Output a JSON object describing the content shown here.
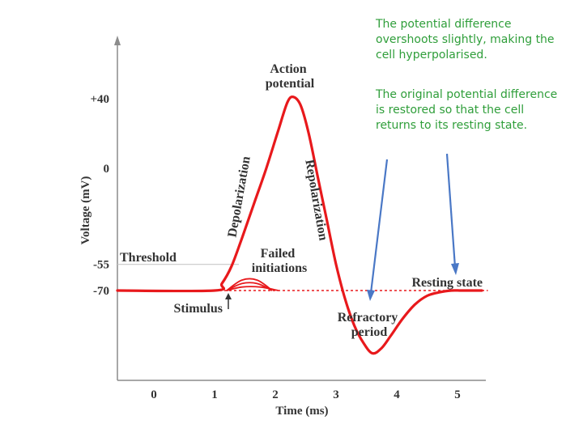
{
  "notes": {
    "overshoot": "The potential difference overshoots slightly, making the cell hyperpolarised.",
    "restored": "The original potential difference is restored so that the cell returns to its resting state."
  },
  "colors": {
    "trace": "#e8191c",
    "note_text": "#2f9e3a",
    "arrows": "#4a78c6",
    "axes": "#8c8c8c",
    "labels": "#333333"
  },
  "chart_data": {
    "type": "line",
    "title": "",
    "xlabel": "Time (ms)",
    "ylabel": "Voltage (mV)",
    "x_ticks": [
      "0",
      "1",
      "2",
      "3",
      "4",
      "5"
    ],
    "y_ticks": [
      {
        "value": 40,
        "label": "+40"
      },
      {
        "value": 0,
        "label": "0"
      },
      {
        "value": -55,
        "label": "-55"
      },
      {
        "value": -70,
        "label": "-70"
      }
    ],
    "xlim": [
      -0.6,
      5.5
    ],
    "ylim": [
      -115,
      70
    ],
    "grid": false,
    "series": [
      {
        "x": [
          -0.6,
          1.0,
          1.12,
          1.28,
          1.45,
          1.65,
          1.85,
          2.05,
          2.2,
          2.3,
          2.42,
          2.55,
          2.7,
          2.85,
          3.0,
          3.15,
          3.3,
          3.45,
          3.6,
          3.75,
          3.9,
          4.1,
          4.3,
          4.5,
          4.7,
          4.9,
          5.05,
          5.2,
          5.4
        ],
        "y": [
          -70,
          -70,
          -66,
          -56,
          -40,
          -20,
          0,
          22,
          38,
          41,
          36,
          20,
          -5,
          -30,
          -55,
          -75,
          -90,
          -100,
          -106,
          -103,
          -96,
          -86,
          -78,
          -73,
          -71,
          -70,
          -70,
          -70,
          -70
        ]
      }
    ],
    "failed_initiations": [
      {
        "x": [
          1.2,
          1.45,
          1.7,
          1.95
        ],
        "y": [
          -70,
          -64,
          -64,
          -70
        ]
      },
      {
        "x": [
          1.2,
          1.45,
          1.7,
          1.95
        ],
        "y": [
          -70,
          -66,
          -66,
          -70
        ]
      },
      {
        "x": [
          1.2,
          1.45,
          1.75,
          2.05
        ],
        "y": [
          -70,
          -68,
          -68,
          -70
        ]
      }
    ],
    "reference_lines": [
      {
        "y": -55,
        "x_from": -0.6,
        "x_to": 1.4,
        "label": "Threshold"
      },
      {
        "y": -70,
        "x_from": 1.0,
        "x_to": 5.5,
        "label": "Resting state"
      }
    ],
    "annotations": [
      {
        "text_lines": [
          "Action",
          "potential"
        ],
        "x": 2.3,
        "y": 53
      },
      {
        "text": "Depolarization"
      },
      {
        "text": "Repolarization"
      },
      {
        "text_lines": [
          "Failed",
          "initiations"
        ],
        "x": 2.1,
        "y": -45
      },
      {
        "text_lines": [
          "Refractory",
          "period"
        ],
        "x": 3.55,
        "y": -92
      },
      {
        "text": "Stimulus",
        "x": 1.0,
        "y": -75
      }
    ]
  }
}
